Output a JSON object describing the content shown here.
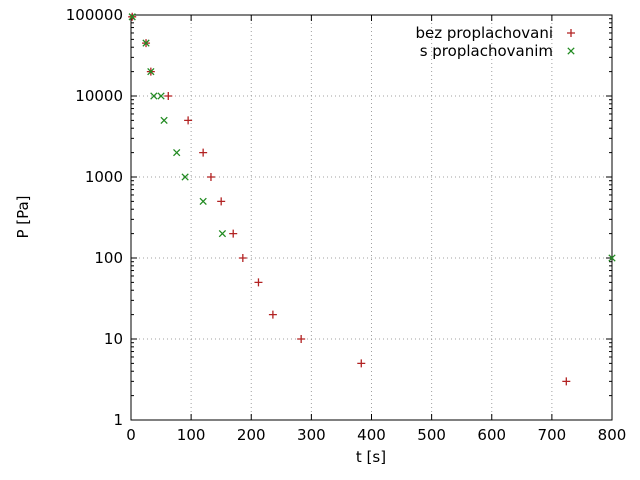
{
  "chart_data": {
    "type": "scatter",
    "title": "",
    "xlabel": "t [s]",
    "ylabel": "P [Pa]",
    "x_ticks": [
      0,
      100,
      200,
      300,
      400,
      500,
      600,
      700,
      800
    ],
    "y_ticks": [
      1,
      10,
      100,
      1000,
      10000,
      100000
    ],
    "xlim": [
      0,
      800
    ],
    "ylim": [
      1,
      100000
    ],
    "y_scale": "log",
    "grid": true,
    "legend_position": "top-right-inside",
    "colors": {
      "series0": "#b22222",
      "series1": "#228b22",
      "grid": "#a0a0a0",
      "border": "#000000"
    },
    "series": [
      {
        "name": "bez proplachovani",
        "marker": "plus",
        "color": "#b22222",
        "points": [
          [
            2,
            95000
          ],
          [
            25,
            45000
          ],
          [
            33,
            20000
          ],
          [
            62,
            10000
          ],
          [
            95,
            5000
          ],
          [
            120,
            2000
          ],
          [
            133,
            1000
          ],
          [
            150,
            500
          ],
          [
            170,
            200
          ],
          [
            186,
            100
          ],
          [
            212,
            50
          ],
          [
            236,
            20
          ],
          [
            283,
            10
          ],
          [
            383,
            5
          ],
          [
            724,
            3
          ]
        ]
      },
      {
        "name": "s proplachovanim",
        "marker": "cross",
        "color": "#228b22",
        "points": [
          [
            2,
            95000
          ],
          [
            25,
            45000
          ],
          [
            33,
            20000
          ],
          [
            38,
            10000
          ],
          [
            50,
            10000
          ],
          [
            55,
            5000
          ],
          [
            76,
            2000
          ],
          [
            90,
            1000
          ],
          [
            120,
            500
          ],
          [
            152,
            200
          ],
          [
            800,
            100
          ]
        ]
      }
    ]
  }
}
